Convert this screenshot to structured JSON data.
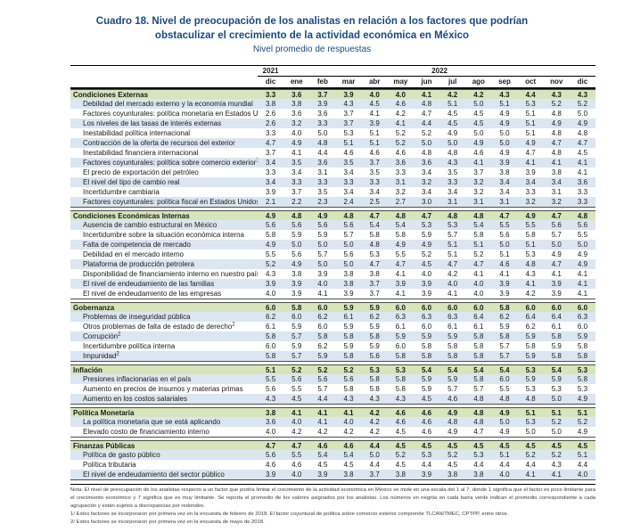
{
  "title": {
    "main": "Cuadro 18. Nivel de preocupación de los analistas en relación a los factores que podrían obstaculizar el crecimiento de la actividad económica en México",
    "subtitle": "Nivel promedio de respuestas"
  },
  "colors": {
    "title_navy": "#1f497d",
    "section_header_green": "#d7e4bc",
    "row_stripe_blue": "#dce6f1"
  },
  "table": {
    "year_groups": [
      {
        "label": "2021",
        "span": 1
      },
      {
        "label": "2022",
        "span": 12
      }
    ],
    "columns": [
      "dic",
      "ene",
      "feb",
      "mar",
      "abr",
      "may",
      "jun",
      "jul",
      "ago",
      "sep",
      "oct",
      "nov",
      "dic"
    ],
    "sections": [
      {
        "label": "Condiciones Externas",
        "values": [
          "3.3",
          "3.6",
          "3.7",
          "3.9",
          "4.0",
          "4.0",
          "4.1",
          "4.2",
          "4.2",
          "4.3",
          "4.4",
          "4.3",
          "4.3"
        ],
        "rows": [
          {
            "label": "Debilidad del mercado externo y la economía mundial",
            "sup": "",
            "values": [
              "3.8",
              "3.8",
              "3.9",
              "4.3",
              "4.5",
              "4.6",
              "4.8",
              "5.1",
              "5.0",
              "5.1",
              "5.3",
              "5.2",
              "5.2"
            ]
          },
          {
            "label": "Factores coyunturales: política monetaria en Estados Unidos",
            "sup": "1",
            "values": [
              "2.6",
              "3.6",
              "3.6",
              "3.7",
              "4.1",
              "4.2",
              "4.7",
              "4.5",
              "4.5",
              "4.9",
              "5.1",
              "4.8",
              "5.0"
            ]
          },
          {
            "label": "Los niveles de las tasas de interés externas",
            "sup": "",
            "values": [
              "2.6",
              "3.2",
              "3.3",
              "3.7",
              "3.9",
              "4.1",
              "4.4",
              "4.5",
              "4.5",
              "4.9",
              "5.1",
              "4.9",
              "4.9"
            ]
          },
          {
            "label": "Inestabilidad política internacional",
            "sup": "",
            "values": [
              "3.3",
              "4.0",
              "5.0",
              "5.3",
              "5.1",
              "5.2",
              "5.2",
              "4.9",
              "5.0",
              "5.0",
              "5.1",
              "4.8",
              "4.8"
            ]
          },
          {
            "label": "Contracción de la oferta de recursos del exterior",
            "sup": "",
            "values": [
              "4.7",
              "4.9",
              "4.8",
              "5.1",
              "5.1",
              "5.2",
              "5.0",
              "5.0",
              "4.9",
              "5.0",
              "4.9",
              "4.7",
              "4.7"
            ]
          },
          {
            "label": "Inestabilidad financiera internacional",
            "sup": "",
            "values": [
              "3.7",
              "4.1",
              "4.4",
              "4.6",
              "4.6",
              "4.6",
              "4.8",
              "4.8",
              "4.6",
              "4.9",
              "4.7",
              "4.8",
              "4.5"
            ]
          },
          {
            "label": "Factores coyunturales: política sobre comercio exterior",
            "sup": "1",
            "values": [
              "3.4",
              "3.5",
              "3.6",
              "3.5",
              "3.7",
              "3.6",
              "3.6",
              "4.3",
              "4.1",
              "3.9",
              "4.1",
              "4.1",
              "4.1"
            ]
          },
          {
            "label": "El precio de exportación del petróleo",
            "sup": "",
            "values": [
              "3.3",
              "3.4",
              "3.1",
              "3.4",
              "3.5",
              "3.3",
              "3.4",
              "3.5",
              "3.7",
              "3.8",
              "3.9",
              "3.8",
              "4.1"
            ]
          },
          {
            "label": "El nivel del tipo de cambio real",
            "sup": "",
            "values": [
              "3.4",
              "3.3",
              "3.3",
              "3.3",
              "3.3",
              "3.1",
              "3.2",
              "3.3",
              "3.2",
              "3.4",
              "3.4",
              "3.4",
              "3.6"
            ]
          },
          {
            "label": "Incertidumbre cambiaria",
            "sup": "",
            "values": [
              "3.9",
              "3.7",
              "3.5",
              "3.4",
              "3.4",
              "3.2",
              "3.4",
              "3.4",
              "3.2",
              "3.4",
              "3.3",
              "3.1",
              "3.3"
            ]
          },
          {
            "label": "Factores coyunturales: política fiscal en Estados Unidos",
            "sup": "1",
            "values": [
              "2.1",
              "2.2",
              "2.3",
              "2.4",
              "2.5",
              "2.7",
              "3.0",
              "3.1",
              "3.1",
              "3.1",
              "3.2",
              "3.2",
              "3.3"
            ]
          }
        ]
      },
      {
        "label": "Condiciones Económicas Internas",
        "values": [
          "4.9",
          "4.8",
          "4.9",
          "4.8",
          "4.7",
          "4.8",
          "4.7",
          "4.8",
          "4.8",
          "4.7",
          "4.9",
          "4.7",
          "4.8"
        ],
        "rows": [
          {
            "label": "Ausencia de cambio estructural en México",
            "sup": "",
            "values": [
              "5.6",
              "5.6",
              "5.6",
              "5.6",
              "5.4",
              "5.4",
              "5.3",
              "5.3",
              "5.4",
              "5.5",
              "5.5",
              "5.6",
              "5.6"
            ]
          },
          {
            "label": "Incertidumbre sobre la situación económica interna",
            "sup": "",
            "values": [
              "5.8",
              "5.9",
              "5.9",
              "5.7",
              "5.8",
              "5.8",
              "5.9",
              "5.7",
              "5.8",
              "5.6",
              "5.8",
              "5.7",
              "5.5"
            ]
          },
          {
            "label": "Falta de competencia de mercado",
            "sup": "",
            "values": [
              "4.9",
              "5.0",
              "5.0",
              "5.0",
              "4.8",
              "4.9",
              "4.9",
              "5.1",
              "5.1",
              "5.0",
              "5.1",
              "5.0",
              "5.0"
            ]
          },
          {
            "label": "Debilidad en el mercado interno",
            "sup": "",
            "values": [
              "5.5",
              "5.6",
              "5.7",
              "5.6",
              "5.3",
              "5.5",
              "5.2",
              "5.1",
              "5.2",
              "5.1",
              "5.3",
              "4.9",
              "4.9"
            ]
          },
          {
            "label": "Plataforma de producción petrolera",
            "sup": "",
            "values": [
              "5.2",
              "4.9",
              "5.0",
              "5.0",
              "4.7",
              "4.7",
              "4.5",
              "4.7",
              "4.7",
              "4.6",
              "4.8",
              "4.7",
              "4.9"
            ]
          },
          {
            "label": "Disponibilidad de financiamiento interno en nuestro país",
            "sup": "",
            "values": [
              "4.3",
              "3.8",
              "3.9",
              "3.8",
              "3.8",
              "4.1",
              "4.0",
              "4.2",
              "4.1",
              "4.1",
              "4.3",
              "4.1",
              "4.1"
            ]
          },
          {
            "label": "El nivel de endeudamiento de las familias",
            "sup": "",
            "values": [
              "3.9",
              "3.9",
              "4.0",
              "3.8",
              "3.7",
              "3.9",
              "3.9",
              "4.0",
              "4.0",
              "3.9",
              "4.1",
              "3.9",
              "4.1"
            ]
          },
          {
            "label": "El nivel de endeudamiento de las empresas",
            "sup": "",
            "values": [
              "4.0",
              "3.9",
              "4.1",
              "3.9",
              "3.7",
              "4.1",
              "3.9",
              "4.1",
              "4.0",
              "3.9",
              "4.2",
              "3.9",
              "4.1"
            ]
          }
        ]
      },
      {
        "label": "Gobernanza",
        "values": [
          "6.0",
          "5.8",
          "6.0",
          "5.9",
          "5.9",
          "6.0",
          "6.0",
          "6.0",
          "6.0",
          "5.8",
          "6.0",
          "6.0",
          "6.0"
        ],
        "rows": [
          {
            "label": "Problemas de inseguridad pública",
            "sup": "",
            "values": [
              "6.2",
              "6.0",
              "6.2",
              "6.1",
              "6.2",
              "6.3",
              "6.3",
              "6.3",
              "6.4",
              "6.2",
              "6.4",
              "6.4",
              "6.3"
            ]
          },
          {
            "label": "Otros problemas de falta de estado de derecho",
            "sup": "2",
            "values": [
              "6.1",
              "5.9",
              "6.0",
              "5.9",
              "5.9",
              "6.1",
              "6.0",
              "6.1",
              "6.1",
              "5.9",
              "6.2",
              "6.1",
              "6.0"
            ]
          },
          {
            "label": "Corrupción",
            "sup": "2",
            "values": [
              "5.8",
              "5.7",
              "5.8",
              "5.8",
              "5.8",
              "5.9",
              "5.9",
              "5.9",
              "5.8",
              "5.8",
              "5.9",
              "5.8",
              "5.9"
            ]
          },
          {
            "label": "Incertidumbre política interna",
            "sup": "",
            "values": [
              "6.0",
              "5.9",
              "6.2",
              "5.9",
              "5.9",
              "6.0",
              "5.8",
              "5.8",
              "5.8",
              "5.7",
              "5.8",
              "5.9",
              "5.8"
            ]
          },
          {
            "label": "Impunidad",
            "sup": "2",
            "values": [
              "5.8",
              "5.7",
              "5.9",
              "5.8",
              "5.6",
              "5.8",
              "5.8",
              "5.8",
              "5.8",
              "5.7",
              "5.9",
              "5.8",
              "5.8"
            ]
          }
        ]
      },
      {
        "label": "Inflación",
        "values": [
          "5.1",
          "5.2",
          "5.2",
          "5.2",
          "5.3",
          "5.3",
          "5.4",
          "5.4",
          "5.4",
          "5.4",
          "5.3",
          "5.4",
          "5.3"
        ],
        "rows": [
          {
            "label": "Presiones inflacionarias en el país",
            "sup": "",
            "values": [
              "5.5",
              "5.6",
              "5.6",
              "5.6",
              "5.8",
              "5.8",
              "5.9",
              "5.9",
              "5.8",
              "6.0",
              "5.9",
              "5.9",
              "5.8"
            ]
          },
          {
            "label": "Aumento en precios de insumos y materias primas",
            "sup": "",
            "values": [
              "5.6",
              "5.5",
              "5.7",
              "5.8",
              "5.8",
              "5.8",
              "5.9",
              "5.7",
              "5.7",
              "5.5",
              "5.3",
              "5.3",
              "5.3"
            ]
          },
          {
            "label": "Aumento en los costos salariales",
            "sup": "",
            "values": [
              "4.3",
              "4.5",
              "4.4",
              "4.3",
              "4.3",
              "4.3",
              "4.5",
              "4.6",
              "4.8",
              "4.8",
              "4.8",
              "5.0",
              "4.9"
            ]
          }
        ]
      },
      {
        "label": "Política Monetaria",
        "values": [
          "3.8",
          "4.1",
          "4.1",
          "4.1",
          "4.2",
          "4.6",
          "4.6",
          "4.9",
          "4.8",
          "4.9",
          "5.1",
          "5.1",
          "5.1"
        ],
        "rows": [
          {
            "label": "La política monetaria que se está aplicando",
            "sup": "",
            "values": [
              "3.6",
              "4.0",
              "4.1",
              "4.0",
              "4.2",
              "4.6",
              "4.6",
              "4.8",
              "4.8",
              "5.0",
              "5.3",
              "5.2",
              "5.2"
            ]
          },
          {
            "label": "Elevado costo de financiamiento interno",
            "sup": "",
            "values": [
              "4.0",
              "4.2",
              "4.2",
              "4.2",
              "4.2",
              "4.5",
              "4.6",
              "4.9",
              "4.7",
              "4.9",
              "5.0",
              "5.0",
              "4.9"
            ]
          }
        ]
      },
      {
        "label": "Finanzas Públicas",
        "values": [
          "4.7",
          "4.7",
          "4.6",
          "4.6",
          "4.4",
          "4.5",
          "4.5",
          "4.5",
          "4.5",
          "4.5",
          "4.5",
          "4.5",
          "4.5"
        ],
        "rows": [
          {
            "label": "Política de gasto público",
            "sup": "",
            "values": [
              "5.6",
              "5.5",
              "5.4",
              "5.4",
              "5.0",
              "5.2",
              "5.3",
              "5.2",
              "5.3",
              "5.1",
              "5.2",
              "5.2",
              "5.1"
            ]
          },
          {
            "label": "Política tributaria",
            "sup": "",
            "values": [
              "4.6",
              "4.6",
              "4.5",
              "4.5",
              "4.4",
              "4.5",
              "4.4",
              "4.5",
              "4.4",
              "4.4",
              "4.4",
              "4.3",
              "4.4"
            ]
          },
          {
            "label": "El nivel de endeudamiento del sector público",
            "sup": "",
            "values": [
              "3.9",
              "4.0",
              "3.9",
              "3.8",
              "3.7",
              "3.8",
              "3.9",
              "3.8",
              "3.8",
              "4.0",
              "4.1",
              "4.1",
              "4.0"
            ]
          }
        ]
      }
    ]
  },
  "footer": {
    "note": "Nota: El nivel de preocupación de los analistas respecto a un factor que podría limitar el crecimiento de la actividad económica en México se mide en una escala del 1 al 7, donde 1 significa que el factor es poco limitante para el crecimiento económico y 7 significa que es muy limitante. Se reporta el promedio de los valores asignados por los analistas. Los números en negrita en cada barra verde indican el promedio correspondiente a cada agrupación y están sujetos a discrepancias por redondeo.",
    "footnotes": [
      "1/ Estos factores se incorporaron por primera vez en la encuesta de febrero de 2018. El factor coyuntural de política sobre comercio exterior comprende TLCAN/TMEC, CPTPP, entre otros.",
      "2/ Estos factores se incorporaron por primera vez en la encuesta de mayo de 2018."
    ]
  }
}
